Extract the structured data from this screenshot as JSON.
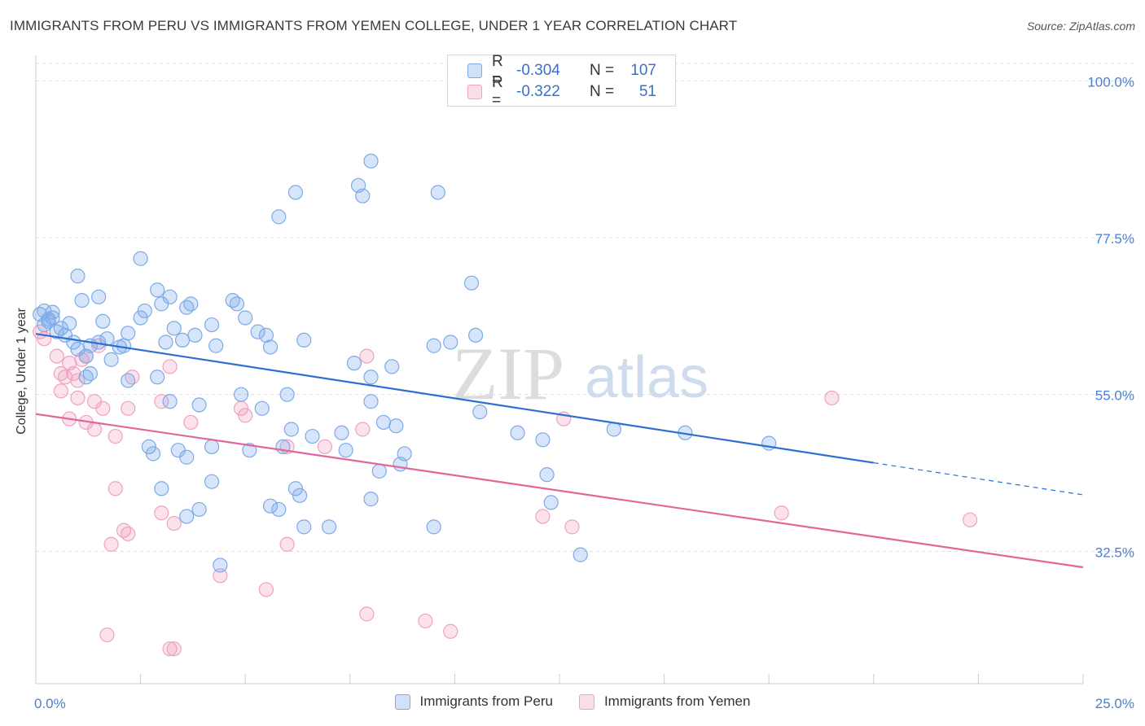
{
  "title": "IMMIGRANTS FROM PERU VS IMMIGRANTS FROM YEMEN COLLEGE, UNDER 1 YEAR CORRELATION CHART",
  "source": "Source: ZipAtlas.com",
  "watermark": {
    "zip": "ZIP",
    "atlas": "atlas"
  },
  "legend_top": {
    "rows": [
      {
        "r_label": "R =",
        "r_value": "-0.304",
        "n_label": "N =",
        "n_value": "107",
        "color": "#6fa3e6"
      },
      {
        "r_label": "R =",
        "r_value": "-0.322",
        "n_label": "N =",
        "n_value": "51",
        "color": "#ee95b4"
      }
    ]
  },
  "colors": {
    "peru_fill": "rgba(120,170,235,0.30)",
    "peru_stroke": "#7eaae6",
    "peru_line": "#2d6fd0",
    "yemen_fill": "rgba(240,150,185,0.28)",
    "yemen_stroke": "#eea3bf",
    "yemen_line": "#e2669a",
    "tick_label": "#4a7fd0"
  },
  "chart_data": {
    "type": "scatter",
    "xlabel": "",
    "ylabel": "College, Under 1 year",
    "x_tick_labels": [
      "0.0%",
      "25.0%"
    ],
    "y_tick_labels": [
      "100.0%",
      "77.5%",
      "55.0%",
      "32.5%"
    ],
    "y_ticks": [
      100.0,
      77.5,
      55.0,
      32.5
    ],
    "xlim": [
      0,
      25
    ],
    "ylim": [
      13.5,
      102.5
    ],
    "grid": true,
    "legend_position": "bottom-center",
    "series": [
      {
        "name": "Immigrants from Peru",
        "trend": {
          "x0": 0.0,
          "y0": 63.7,
          "x1": 20.0,
          "y1": 45.2,
          "dash_to_x": 25.0,
          "dash_to_y": 40.6
        },
        "points": [
          [
            0.1,
            66.5
          ],
          [
            0.2,
            67.0
          ],
          [
            0.3,
            65.5
          ],
          [
            0.4,
            66.0
          ],
          [
            0.2,
            65.0
          ],
          [
            0.5,
            64.0
          ],
          [
            0.6,
            64.5
          ],
          [
            0.3,
            65.8
          ],
          [
            0.4,
            66.8
          ],
          [
            0.8,
            65.2
          ],
          [
            0.9,
            62.5
          ],
          [
            1.0,
            61.5
          ],
          [
            1.2,
            60.5
          ],
          [
            0.7,
            63.5
          ],
          [
            1.3,
            62.0
          ],
          [
            1.5,
            62.5
          ],
          [
            1.7,
            63.0
          ],
          [
            1.6,
            65.5
          ],
          [
            2.0,
            61.8
          ],
          [
            2.1,
            62.0
          ],
          [
            2.2,
            63.8
          ],
          [
            1.0,
            72.0
          ],
          [
            1.1,
            68.5
          ],
          [
            1.5,
            69.0
          ],
          [
            2.5,
            66.0
          ],
          [
            2.6,
            67.0
          ],
          [
            2.9,
            70.0
          ],
          [
            3.0,
            68.0
          ],
          [
            3.2,
            69.0
          ],
          [
            2.5,
            74.5
          ],
          [
            3.6,
            67.5
          ],
          [
            3.7,
            68.0
          ],
          [
            4.2,
            65.0
          ],
          [
            4.3,
            62.0
          ],
          [
            4.7,
            68.5
          ],
          [
            4.8,
            68.0
          ],
          [
            5.0,
            66.0
          ],
          [
            5.3,
            64.0
          ],
          [
            5.5,
            63.5
          ],
          [
            5.6,
            61.8
          ],
          [
            3.8,
            63.5
          ],
          [
            3.3,
            64.5
          ],
          [
            3.1,
            62.5
          ],
          [
            3.5,
            62.8
          ],
          [
            2.2,
            57.0
          ],
          [
            1.3,
            58.0
          ],
          [
            1.2,
            57.5
          ],
          [
            2.9,
            57.5
          ],
          [
            3.2,
            54.0
          ],
          [
            3.9,
            53.5
          ],
          [
            4.9,
            55.0
          ],
          [
            6.0,
            55.0
          ],
          [
            5.4,
            53.0
          ],
          [
            6.1,
            50.0
          ],
          [
            7.4,
            47.0
          ],
          [
            8.2,
            44.0
          ],
          [
            6.4,
            62.8
          ],
          [
            7.6,
            59.5
          ],
          [
            8.5,
            59.0
          ],
          [
            8.0,
            57.5
          ],
          [
            8.0,
            54.0
          ],
          [
            8.3,
            51.0
          ],
          [
            8.6,
            50.5
          ],
          [
            8.7,
            45.0
          ],
          [
            9.5,
            62.0
          ],
          [
            9.9,
            62.5
          ],
          [
            10.5,
            63.5
          ],
          [
            12.1,
            48.5
          ],
          [
            8.8,
            46.5
          ],
          [
            7.3,
            49.5
          ],
          [
            6.6,
            49.0
          ],
          [
            5.9,
            47.5
          ],
          [
            5.1,
            47.0
          ],
          [
            4.2,
            47.5
          ],
          [
            3.4,
            47.0
          ],
          [
            2.7,
            47.5
          ],
          [
            2.8,
            46.5
          ],
          [
            3.6,
            46.0
          ],
          [
            3.0,
            41.5
          ],
          [
            3.6,
            37.5
          ],
          [
            3.9,
            38.5
          ],
          [
            4.2,
            42.5
          ],
          [
            5.6,
            39.0
          ],
          [
            5.8,
            38.5
          ],
          [
            6.2,
            41.5
          ],
          [
            6.3,
            40.5
          ],
          [
            6.4,
            36.0
          ],
          [
            7.0,
            36.0
          ],
          [
            8.0,
            40.0
          ],
          [
            9.5,
            36.0
          ],
          [
            6.2,
            84.0
          ],
          [
            5.8,
            80.5
          ],
          [
            7.7,
            85.0
          ],
          [
            7.8,
            83.5
          ],
          [
            9.6,
            84.0
          ],
          [
            10.4,
            71.0
          ],
          [
            10.6,
            52.5
          ],
          [
            11.5,
            49.5
          ],
          [
            12.2,
            43.5
          ],
          [
            13.8,
            50.0
          ],
          [
            15.5,
            49.5
          ],
          [
            17.5,
            48.0
          ],
          [
            12.3,
            39.5
          ],
          [
            13.0,
            32.0
          ],
          [
            4.4,
            30.5
          ],
          [
            8.0,
            88.5
          ],
          [
            1.8,
            60.0
          ]
        ]
      },
      {
        "name": "Immigrants from Yemen",
        "trend": {
          "x0": 0.0,
          "y0": 52.2,
          "x1": 25.0,
          "y1": 30.2
        },
        "points": [
          [
            0.1,
            64.0
          ],
          [
            0.2,
            63.0
          ],
          [
            0.5,
            60.5
          ],
          [
            0.6,
            58.0
          ],
          [
            0.7,
            57.5
          ],
          [
            0.8,
            59.5
          ],
          [
            0.9,
            58.0
          ],
          [
            1.0,
            57.0
          ],
          [
            1.1,
            60.0
          ],
          [
            1.2,
            60.5
          ],
          [
            1.5,
            62.0
          ],
          [
            0.6,
            55.5
          ],
          [
            1.0,
            54.5
          ],
          [
            1.4,
            54.0
          ],
          [
            1.6,
            53.0
          ],
          [
            2.2,
            53.0
          ],
          [
            2.3,
            57.5
          ],
          [
            3.0,
            54.0
          ],
          [
            3.2,
            59.0
          ],
          [
            0.8,
            51.5
          ],
          [
            1.2,
            51.0
          ],
          [
            1.4,
            50.0
          ],
          [
            1.9,
            49.0
          ],
          [
            3.7,
            51.0
          ],
          [
            4.9,
            53.0
          ],
          [
            5.0,
            52.0
          ],
          [
            6.0,
            47.5
          ],
          [
            6.9,
            47.5
          ],
          [
            7.8,
            50.0
          ],
          [
            7.9,
            60.5
          ],
          [
            1.9,
            41.5
          ],
          [
            2.1,
            35.5
          ],
          [
            2.2,
            35.0
          ],
          [
            1.8,
            33.5
          ],
          [
            3.0,
            38.0
          ],
          [
            3.3,
            36.5
          ],
          [
            6.0,
            33.5
          ],
          [
            4.4,
            29.0
          ],
          [
            5.5,
            27.0
          ],
          [
            7.9,
            23.5
          ],
          [
            9.3,
            22.5
          ],
          [
            9.9,
            21.0
          ],
          [
            1.7,
            20.5
          ],
          [
            3.2,
            18.5
          ],
          [
            3.3,
            18.5
          ],
          [
            12.1,
            37.5
          ],
          [
            12.8,
            36.0
          ],
          [
            12.6,
            51.5
          ],
          [
            17.8,
            38.0
          ],
          [
            19.0,
            54.5
          ],
          [
            22.3,
            37.0
          ]
        ]
      }
    ]
  }
}
